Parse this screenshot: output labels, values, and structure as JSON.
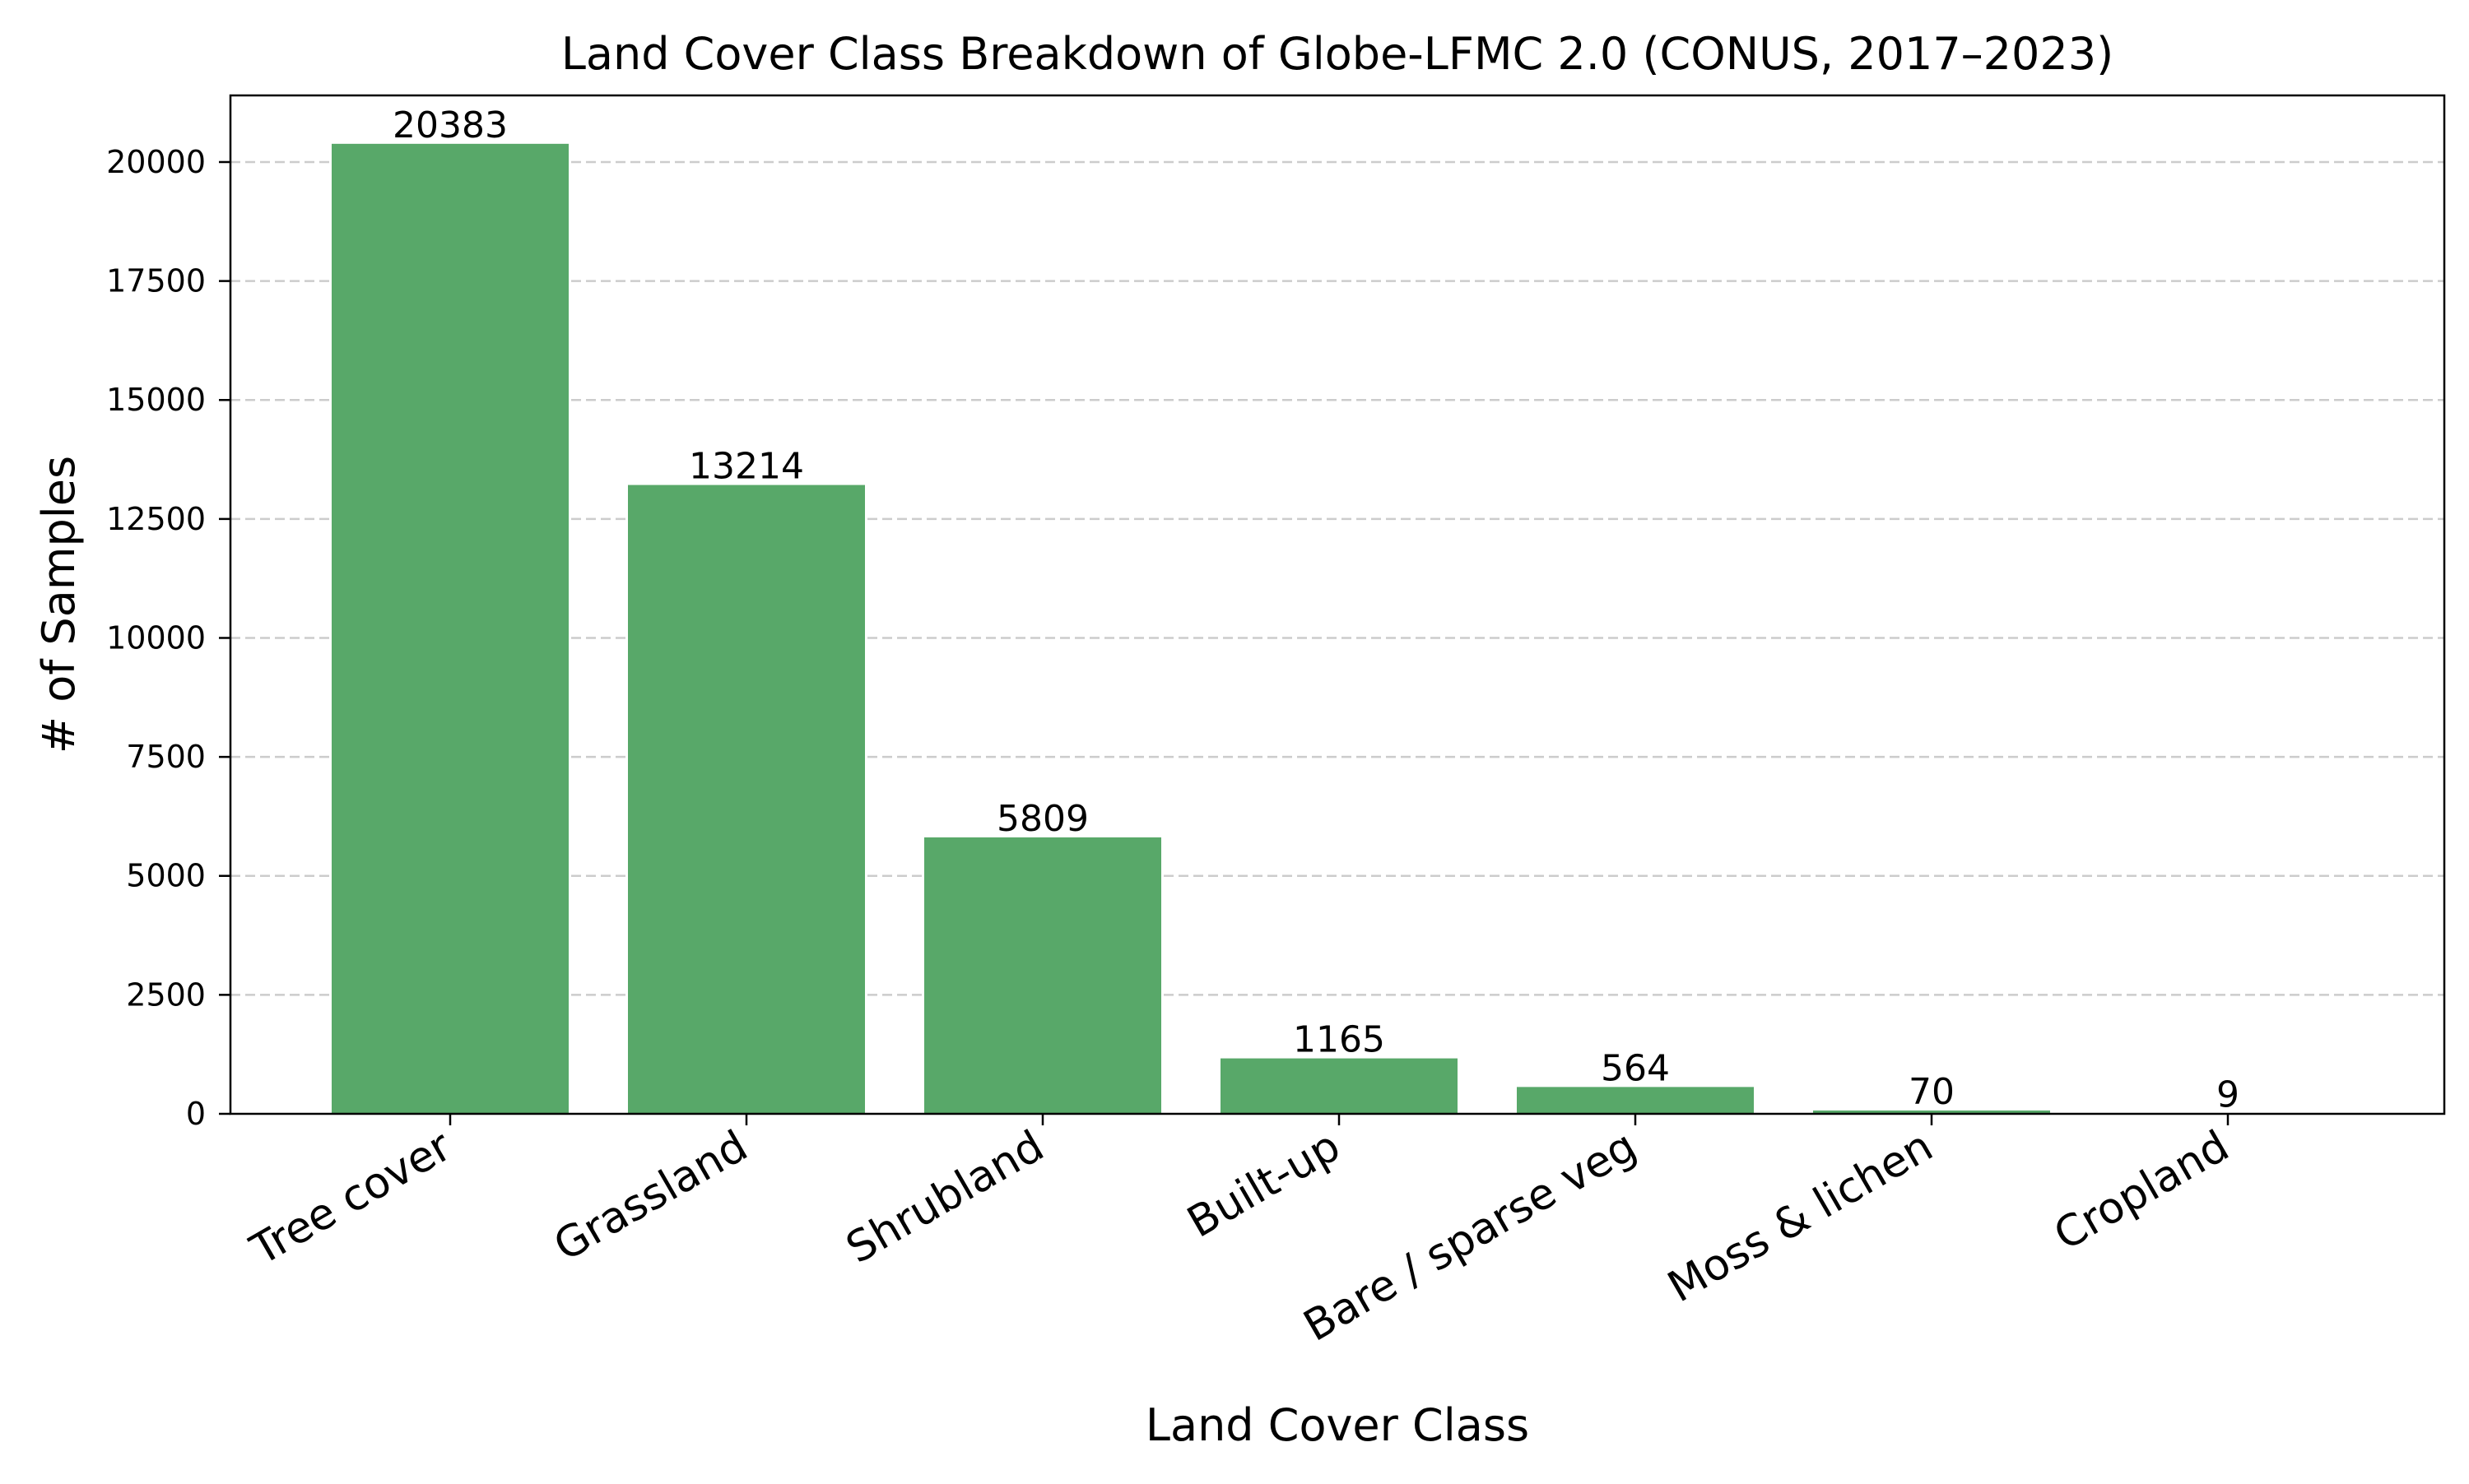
{
  "chart_data": {
    "type": "bar",
    "title": "Land Cover Class Breakdown of Globe-LFMC 2.0 (CONUS, 2017–2023)",
    "xlabel": "Land Cover Class",
    "ylabel": "# of Samples",
    "categories": [
      "Tree cover",
      "Grassland",
      "Shrubland",
      "Built-up",
      "Bare / sparse veg",
      "Moss & lichen",
      "Cropland"
    ],
    "values": [
      20383,
      13214,
      5809,
      1165,
      564,
      70,
      9
    ],
    "data_labels": [
      "20383",
      "13214",
      "5809",
      "1165",
      "564",
      "70",
      "9"
    ],
    "ylim": [
      0,
      21400
    ],
    "yticks": [
      0,
      2500,
      5000,
      7500,
      10000,
      12500,
      15000,
      17500,
      20000
    ],
    "ytick_labels": [
      "0",
      "2500",
      "5000",
      "7500",
      "10000",
      "12500",
      "15000",
      "17500",
      "20000"
    ],
    "grid": "y-dashed",
    "legend": "none",
    "bar_color": "#58a869",
    "grid_color": "#cccccc"
  }
}
